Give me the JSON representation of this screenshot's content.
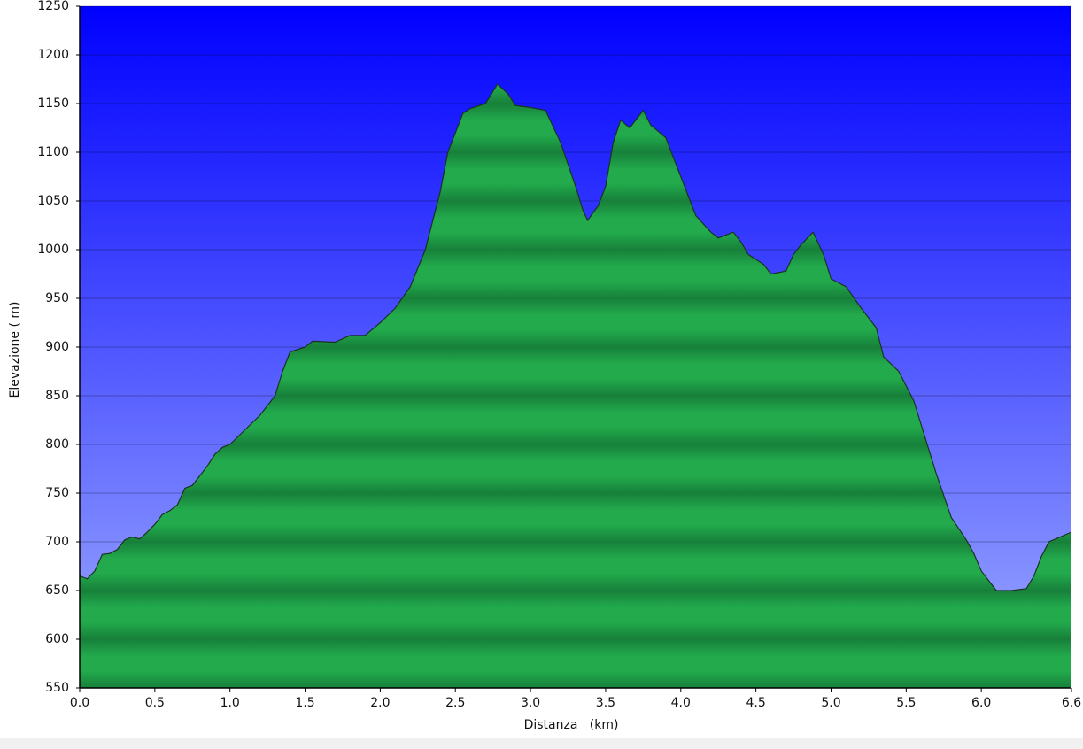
{
  "chart_data": {
    "type": "area",
    "x_label": "Distanza   (km)",
    "y_label": "Elevazione ( m)",
    "x": [
      0,
      0.05,
      0.1,
      0.15,
      0.2,
      0.25,
      0.3,
      0.35,
      0.4,
      0.45,
      0.5,
      0.55,
      0.6,
      0.65,
      0.7,
      0.75,
      0.8,
      0.85,
      0.9,
      0.95,
      1.0,
      1.1,
      1.2,
      1.3,
      1.35,
      1.4,
      1.5,
      1.55,
      1.7,
      1.8,
      1.9,
      2.0,
      2.1,
      2.2,
      2.3,
      2.4,
      2.45,
      2.55,
      2.6,
      2.7,
      2.78,
      2.85,
      2.9,
      3.0,
      3.1,
      3.2,
      3.3,
      3.35,
      3.38,
      3.45,
      3.5,
      3.55,
      3.6,
      3.66,
      3.75,
      3.8,
      3.9,
      4.0,
      4.1,
      4.2,
      4.25,
      4.35,
      4.4,
      4.45,
      4.55,
      4.6,
      4.7,
      4.75,
      4.8,
      4.88,
      4.95,
      5.0,
      5.1,
      5.2,
      5.3,
      5.35,
      5.45,
      5.55,
      5.6,
      5.7,
      5.8,
      5.9,
      5.95,
      6.0,
      6.1,
      6.2,
      6.3,
      6.35,
      6.4,
      6.45,
      6.6
    ],
    "series": [
      {
        "name": "Elevazione",
        "color": "#1fa84a",
        "values": [
          665,
          662,
          670,
          687,
          688,
          692,
          702,
          705,
          703,
          710,
          718,
          728,
          732,
          738,
          755,
          758,
          768,
          778,
          790,
          797,
          800,
          815,
          830,
          850,
          875,
          895,
          900,
          906,
          905,
          912,
          912,
          925,
          940,
          962,
          1000,
          1060,
          1100,
          1140,
          1145,
          1150,
          1170,
          1160,
          1148,
          1146,
          1143,
          1110,
          1065,
          1040,
          1030,
          1045,
          1065,
          1110,
          1133,
          1125,
          1143,
          1128,
          1115,
          1075,
          1035,
          1018,
          1012,
          1018,
          1008,
          995,
          985,
          975,
          978,
          995,
          1005,
          1018,
          995,
          970,
          962,
          940,
          920,
          890,
          875,
          845,
          820,
          770,
          725,
          702,
          688,
          670,
          650,
          650,
          652,
          665,
          685,
          700,
          710
        ]
      }
    ],
    "xlim": [
      0,
      6.6
    ],
    "ylim": [
      550,
      1250
    ],
    "xticks": [
      {
        "value": 0,
        "label": "0.0"
      },
      0.5,
      {
        "value": 1,
        "label": "1.0"
      },
      1.5,
      {
        "value": 2,
        "label": "2.0"
      },
      2.5,
      {
        "value": 3,
        "label": "3.0"
      },
      3.5,
      {
        "value": 4,
        "label": "4.0"
      },
      4.5,
      {
        "value": 5,
        "label": "5.0"
      },
      5.5,
      {
        "value": 6,
        "label": "6.0"
      },
      6.6
    ],
    "yticks": [
      550,
      600,
      650,
      700,
      750,
      800,
      850,
      900,
      950,
      1000,
      1050,
      1100,
      1150,
      1200,
      1250
    ],
    "grid": true
  }
}
